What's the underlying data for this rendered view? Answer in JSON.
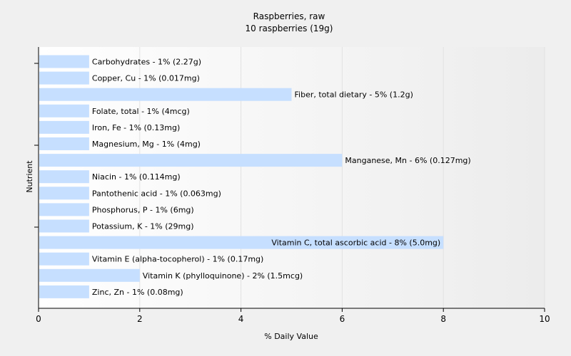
{
  "chart_data": {
    "type": "bar",
    "orientation": "horizontal",
    "title": "Raspberries, raw",
    "subtitle": "10 raspberries (19g)",
    "xlabel": "% Daily Value",
    "ylabel": "Nutrient",
    "xlim": [
      0,
      10
    ],
    "xticks": [
      0,
      2,
      4,
      6,
      8,
      10
    ],
    "grid": true,
    "bar_color": "#c6dfff",
    "categories": [
      "Carbohydrates",
      "Copper, Cu",
      "Fiber, total dietary",
      "Folate, total",
      "Iron, Fe",
      "Magnesium, Mg",
      "Manganese, Mn",
      "Niacin",
      "Pantothenic acid",
      "Phosphorus, P",
      "Potassium, K",
      "Vitamin C, total ascorbic acid",
      "Vitamin E (alpha-tocopherol)",
      "Vitamin K (phylloquinone)",
      "Zinc, Zn"
    ],
    "values": [
      1,
      1,
      5,
      1,
      1,
      1,
      6,
      1,
      1,
      1,
      1,
      8,
      1,
      2,
      1
    ],
    "labels": [
      "Carbohydrates - 1% (2.27g)",
      "Copper, Cu - 1% (0.017mg)",
      "Fiber, total dietary - 5% (1.2g)",
      "Folate, total - 1% (4mcg)",
      "Iron, Fe - 1% (0.13mg)",
      "Magnesium, Mg - 1% (4mg)",
      "Manganese, Mn - 6% (0.127mg)",
      "Niacin - 1% (0.114mg)",
      "Pantothenic acid - 1% (0.063mg)",
      "Phosphorus, P - 1% (6mg)",
      "Potassium, K - 1% (29mg)",
      "Vitamin C, total ascorbic acid - 8% (5.0mg)",
      "Vitamin E (alpha-tocopherol) - 1% (0.17mg)",
      "Vitamin K (phylloquinone) - 2% (1.5mcg)",
      "Zinc, Zn - 1% (0.08mg)"
    ]
  }
}
